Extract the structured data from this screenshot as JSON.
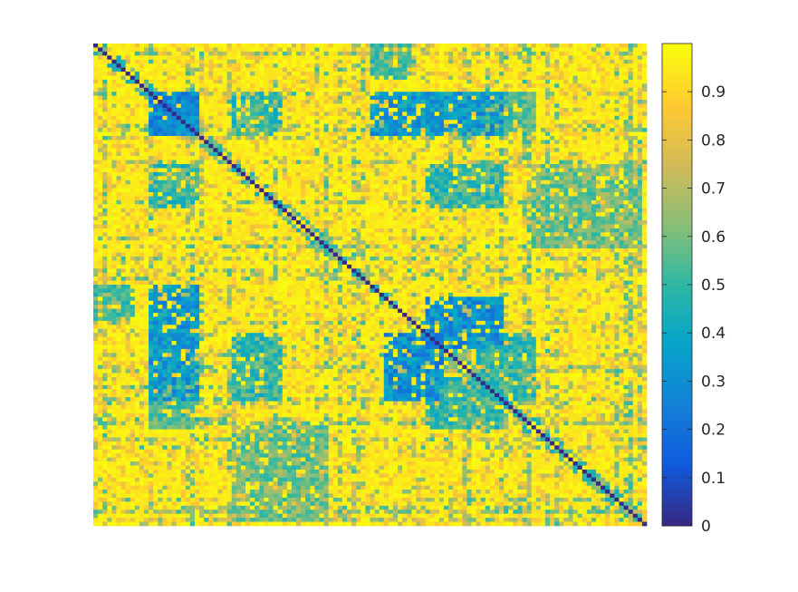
{
  "chart_data": {
    "type": "heatmap",
    "title": "",
    "xlabel": "",
    "ylabel": "",
    "matrix_size": 120,
    "symmetric": true,
    "diagonal_value": 0,
    "background_value": 0.95,
    "colormap": "parula",
    "colorbar": {
      "position": "right",
      "range": [
        0,
        1
      ],
      "ticks": [
        0,
        0.1,
        0.2,
        0.3,
        0.4,
        0.5,
        0.6,
        0.7,
        0.8,
        0.9
      ],
      "tick_labels": [
        "0",
        "0.1",
        "0.2",
        "0.3",
        "0.4",
        "0.5",
        "0.6",
        "0.7",
        "0.8",
        "0.9"
      ]
    },
    "cluster_blocks": [
      {
        "rows": [
          12,
          22
        ],
        "cols": [
          12,
          22
        ],
        "value": 0.3
      },
      {
        "rows": [
          12,
          22
        ],
        "cols": [
          72,
          88
        ],
        "value": 0.35
      },
      {
        "rows": [
          60,
          75
        ],
        "cols": [
          12,
          22
        ],
        "value": 0.35
      },
      {
        "rows": [
          63,
          75
        ],
        "cols": [
          72,
          88
        ],
        "value": 0.3
      },
      {
        "rows": [
          30,
          40
        ],
        "cols": [
          12,
          22
        ],
        "value": 0.5
      },
      {
        "rows": [
          30,
          40
        ],
        "cols": [
          72,
          88
        ],
        "value": 0.5
      },
      {
        "rows": [
          83,
          95
        ],
        "cols": [
          12,
          22
        ],
        "value": 0.55
      },
      {
        "rows": [
          83,
          95
        ],
        "cols": [
          72,
          88
        ],
        "value": 0.5
      },
      {
        "rows": [
          0,
          8
        ],
        "cols": [
          60,
          68
        ],
        "value": 0.55
      },
      {
        "rows": [
          30,
          50
        ],
        "cols": [
          95,
          118
        ],
        "value": 0.6
      }
    ],
    "grid": false,
    "axes_visible": false
  },
  "colors": {
    "parula_stops": [
      "#352a87",
      "#0f5cdd",
      "#1481d6",
      "#06a4ca",
      "#2eb7a4",
      "#87bf77",
      "#d1bb59",
      "#fec832",
      "#f9fb0e"
    ]
  }
}
